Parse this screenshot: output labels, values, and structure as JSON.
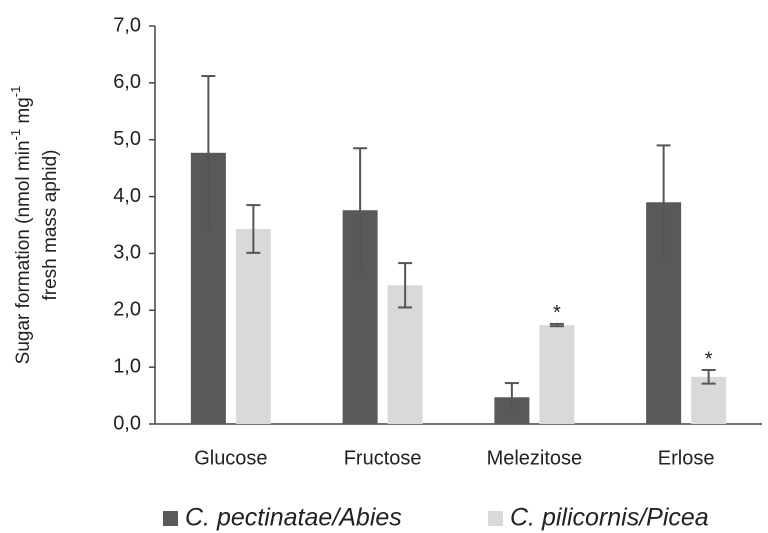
{
  "chart_data": {
    "type": "bar",
    "ylabel": [
      "Sugar formation (nmol min",
      "-1",
      " mg",
      "-1",
      "fresh mass aphid)"
    ],
    "categories": [
      "Glucose",
      "Fructose",
      "Melezitose",
      "Erlose"
    ],
    "series": [
      {
        "name": "C. pectinatae/Abies",
        "color": "#595959",
        "values": [
          4.77,
          3.76,
          0.47,
          3.9
        ],
        "errors": [
          1.35,
          1.09,
          0.25,
          1.0
        ],
        "markers": [
          null,
          null,
          null,
          null
        ]
      },
      {
        "name": "C. pilicornis/Picea",
        "color": "#d9d9d9",
        "values": [
          3.43,
          2.44,
          1.74,
          0.83
        ],
        "errors": [
          0.42,
          0.39,
          0.02,
          0.12
        ],
        "markers": [
          null,
          null,
          "*",
          "*"
        ]
      }
    ],
    "ylim": [
      0,
      7
    ],
    "yticks": [
      {
        "value": 0,
        "label": "0,0"
      },
      {
        "value": 1,
        "label": "1,0"
      },
      {
        "value": 2,
        "label": "2,0"
      },
      {
        "value": 3,
        "label": "3,0"
      },
      {
        "value": 4,
        "label": "4,0"
      },
      {
        "value": 5,
        "label": "5,0"
      },
      {
        "value": 6,
        "label": "6,0"
      },
      {
        "value": 7,
        "label": "7,0"
      }
    ],
    "grid": false,
    "legend": "bottom"
  }
}
